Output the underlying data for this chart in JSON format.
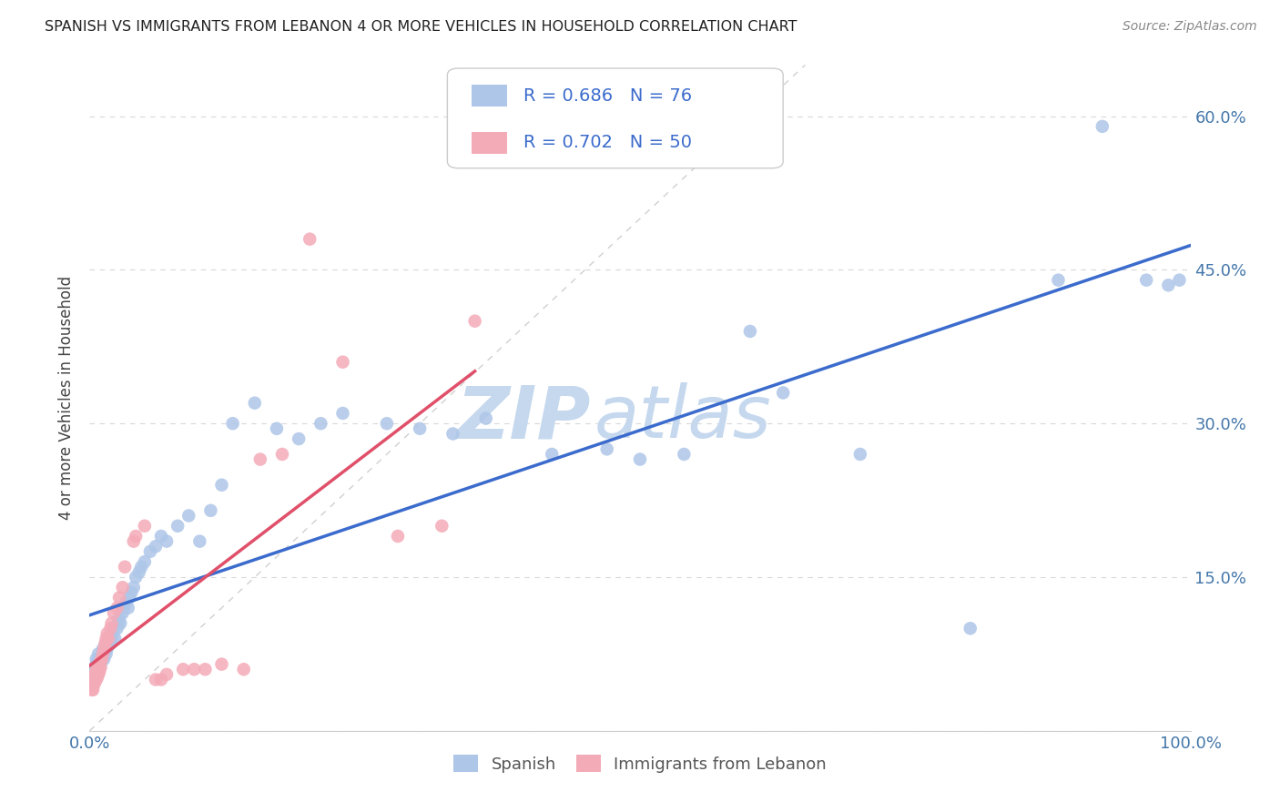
{
  "title": "SPANISH VS IMMIGRANTS FROM LEBANON 4 OR MORE VEHICLES IN HOUSEHOLD CORRELATION CHART",
  "source": "Source: ZipAtlas.com",
  "ylabel": "4 or more Vehicles in Household",
  "xlim": [
    0.0,
    1.0
  ],
  "ylim": [
    0.0,
    0.65
  ],
  "xtick_positions": [
    0.0,
    0.1,
    0.2,
    0.3,
    0.4,
    0.5,
    0.6,
    0.7,
    0.8,
    0.9,
    1.0
  ],
  "xticklabels": [
    "0.0%",
    "",
    "",
    "",
    "",
    "",
    "",
    "",
    "",
    "",
    "100.0%"
  ],
  "ytick_positions": [
    0.0,
    0.15,
    0.3,
    0.45,
    0.6
  ],
  "ytick_labels_right": [
    "",
    "15.0%",
    "30.0%",
    "45.0%",
    "60.0%"
  ],
  "blue_R": "0.686",
  "blue_N": "76",
  "pink_R": "0.702",
  "pink_N": "50",
  "blue_color": "#aec6e8",
  "pink_color": "#f4abb8",
  "blue_line_color": "#3b6bcc",
  "pink_line_color": "#e0506a",
  "diagonal_color": "#d0d0d0",
  "tick_color": "#4477aa",
  "legend_text_color": "#3b6bcc",
  "watermark_color": "#c5d8ee",
  "blue_x": [
    0.003,
    0.004,
    0.005,
    0.006,
    0.006,
    0.007,
    0.007,
    0.008,
    0.008,
    0.009,
    0.009,
    0.01,
    0.01,
    0.011,
    0.012,
    0.012,
    0.013,
    0.013,
    0.014,
    0.015,
    0.015,
    0.016,
    0.017,
    0.018,
    0.019,
    0.02,
    0.021,
    0.022,
    0.023,
    0.025,
    0.026,
    0.027,
    0.028,
    0.03,
    0.031,
    0.033,
    0.035,
    0.036,
    0.038,
    0.04,
    0.042,
    0.045,
    0.047,
    0.05,
    0.055,
    0.06,
    0.065,
    0.07,
    0.08,
    0.09,
    0.1,
    0.11,
    0.12,
    0.13,
    0.15,
    0.17,
    0.19,
    0.21,
    0.23,
    0.27,
    0.3,
    0.33,
    0.36,
    0.42,
    0.47,
    0.5,
    0.54,
    0.6,
    0.63,
    0.7,
    0.8,
    0.88,
    0.92,
    0.96,
    0.98,
    0.99
  ],
  "blue_y": [
    0.055,
    0.06,
    0.06,
    0.065,
    0.07,
    0.06,
    0.065,
    0.07,
    0.075,
    0.065,
    0.07,
    0.065,
    0.07,
    0.07,
    0.075,
    0.08,
    0.07,
    0.075,
    0.08,
    0.075,
    0.085,
    0.08,
    0.085,
    0.09,
    0.085,
    0.09,
    0.095,
    0.1,
    0.09,
    0.1,
    0.105,
    0.11,
    0.105,
    0.115,
    0.12,
    0.125,
    0.12,
    0.13,
    0.135,
    0.14,
    0.15,
    0.155,
    0.16,
    0.165,
    0.175,
    0.18,
    0.19,
    0.185,
    0.2,
    0.21,
    0.185,
    0.215,
    0.24,
    0.3,
    0.32,
    0.295,
    0.285,
    0.3,
    0.31,
    0.3,
    0.295,
    0.29,
    0.305,
    0.27,
    0.275,
    0.265,
    0.27,
    0.39,
    0.33,
    0.27,
    0.1,
    0.44,
    0.59,
    0.44,
    0.435,
    0.44
  ],
  "pink_x": [
    0.002,
    0.002,
    0.003,
    0.003,
    0.004,
    0.004,
    0.005,
    0.005,
    0.006,
    0.006,
    0.007,
    0.007,
    0.008,
    0.008,
    0.009,
    0.009,
    0.01,
    0.01,
    0.011,
    0.012,
    0.013,
    0.014,
    0.015,
    0.016,
    0.017,
    0.019,
    0.02,
    0.022,
    0.025,
    0.027,
    0.03,
    0.032,
    0.04,
    0.042,
    0.05,
    0.06,
    0.065,
    0.07,
    0.085,
    0.095,
    0.105,
    0.12,
    0.14,
    0.155,
    0.175,
    0.2,
    0.23,
    0.28,
    0.32,
    0.35
  ],
  "pink_y": [
    0.04,
    0.045,
    0.04,
    0.048,
    0.045,
    0.05,
    0.048,
    0.055,
    0.05,
    0.058,
    0.052,
    0.06,
    0.055,
    0.06,
    0.058,
    0.065,
    0.062,
    0.068,
    0.07,
    0.075,
    0.08,
    0.085,
    0.09,
    0.095,
    0.09,
    0.1,
    0.105,
    0.115,
    0.12,
    0.13,
    0.14,
    0.16,
    0.185,
    0.19,
    0.2,
    0.05,
    0.05,
    0.055,
    0.06,
    0.06,
    0.06,
    0.065,
    0.06,
    0.265,
    0.27,
    0.48,
    0.36,
    0.19,
    0.2,
    0.4
  ]
}
